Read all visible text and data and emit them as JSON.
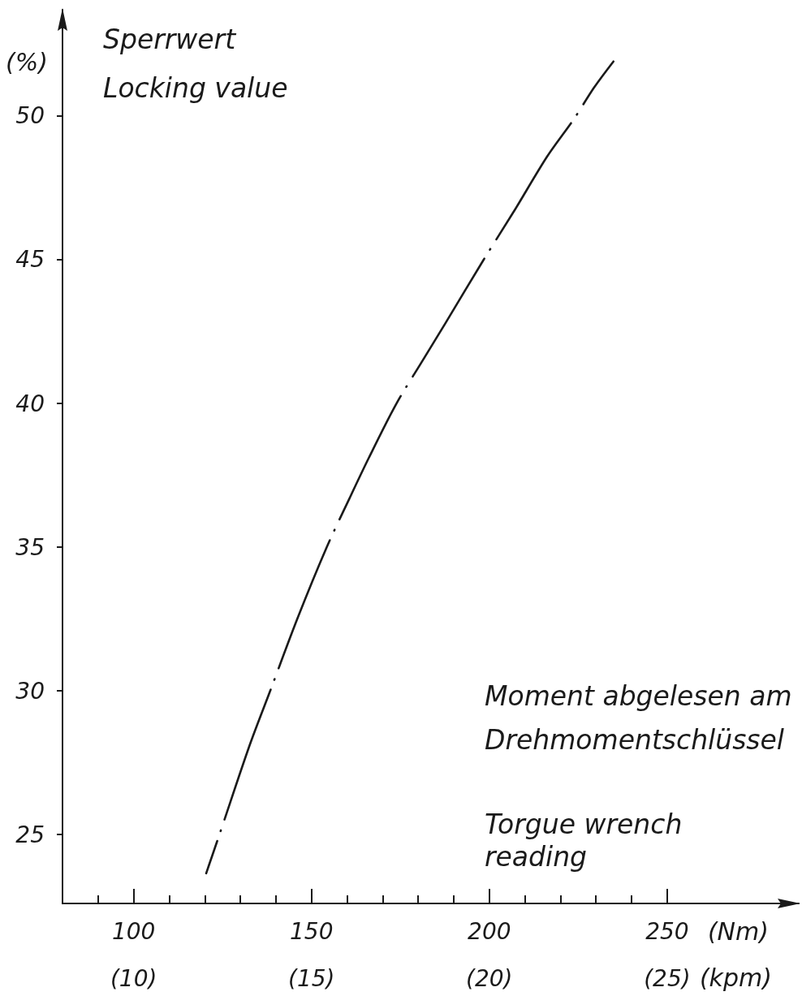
{
  "chart_data": {
    "type": "line",
    "ylabel": "Sperrwert\nLocking value",
    "xlabel": "Moment abgelesen am\nDrehmomentschlüssel",
    "x2label": "(kpm)",
    "annotations": [
      "(%)",
      "(Nm)",
      "Torgue wrench\nreading"
    ],
    "xlim": [
      80,
      287
    ],
    "xticks": [
      {
        "value": 90,
        "label": null
      },
      100,
      {
        "value": 110,
        "label": null
      },
      {
        "value": 120,
        "label": null
      },
      {
        "value": 130,
        "label": null
      },
      {
        "value": 140,
        "label": null
      },
      150,
      {
        "value": 160,
        "label": null
      },
      {
        "value": 170,
        "label": null
      },
      {
        "value": 180,
        "label": null
      },
      {
        "value": 190,
        "label": null
      },
      200,
      {
        "value": 210,
        "label": null
      },
      {
        "value": 220,
        "label": null
      },
      {
        "value": 230,
        "label": null
      },
      {
        "value": 240,
        "label": null
      },
      250
    ],
    "x2lim": [
      8,
      28.7
    ],
    "x2ticks": [
      {
        "value": 10,
        "label": "(10)"
      },
      {
        "value": 15,
        "label": "(15)"
      },
      {
        "value": 20,
        "label": "(20)"
      },
      {
        "value": 25,
        "label": "(25)"
      }
    ],
    "ylim": [
      22.6,
      53.7
    ],
    "yticks": [
      25,
      30,
      35,
      40,
      45,
      50
    ],
    "marker": "none",
    "line_style": "dashed",
    "x": [
      120.4,
      124.4,
      132.6,
      138.4,
      146.0,
      154.3,
      160.7,
      166.1,
      173.9,
      180.8,
      187.7,
      198.4,
      207.0,
      216.3,
      223.8,
      229.5,
      234.9
    ],
    "series": [
      {
        "color": "#1a1a1a",
        "values": [
          23.65,
          25.1,
          28.1,
          30.0,
          32.5,
          35.0,
          36.7,
          38.1,
          40.0,
          41.4,
          42.8,
          45.0,
          46.7,
          48.6,
          49.9,
          51.0,
          51.9
        ]
      }
    ]
  }
}
